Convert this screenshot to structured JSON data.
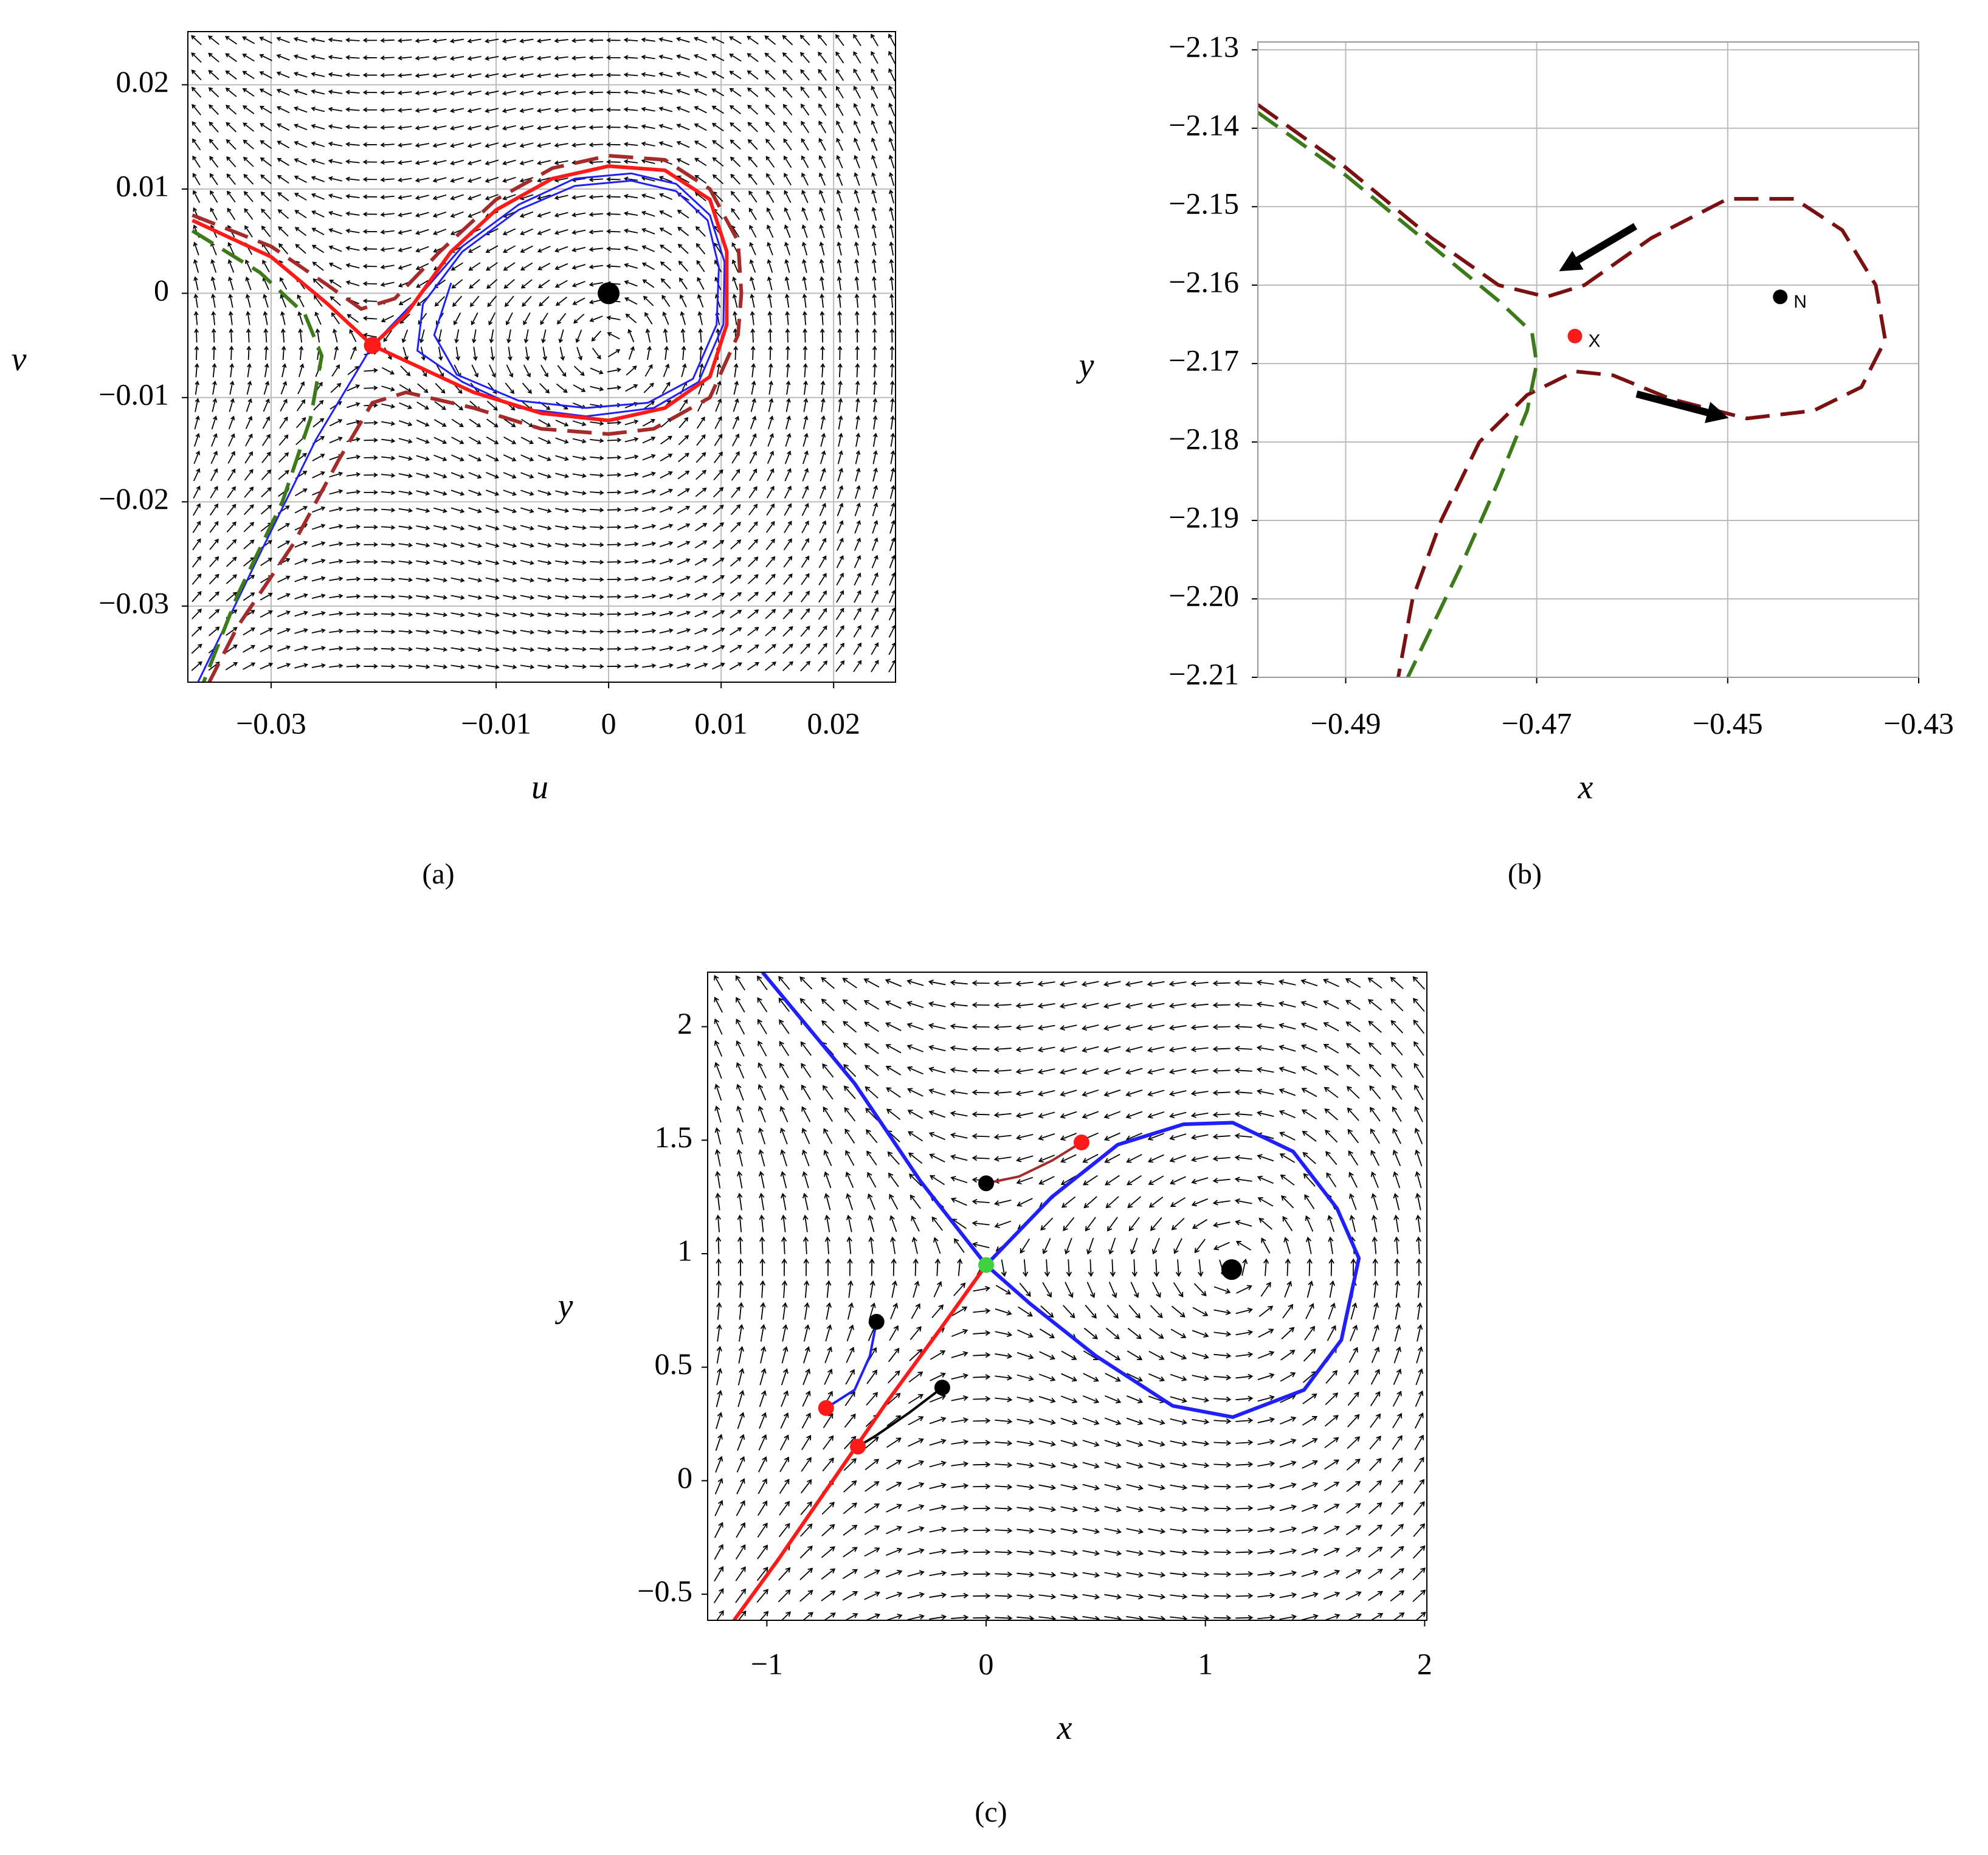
{
  "chart_data": [
    {
      "type": "line",
      "caption": "(a)",
      "xlabel": "u",
      "ylabel": "v",
      "xlim": [
        -0.0374,
        0.0255
      ],
      "ylim": [
        -0.0373,
        0.0251
      ],
      "xticks": [
        {
          "value": -0.03,
          "label": "−0.03"
        },
        {
          "value": -0.01,
          "label": "−0.01"
        },
        0,
        0.01,
        0.02
      ],
      "yticks": [
        0.02,
        0.01,
        0,
        {
          "value": -0.01,
          "label": "−0.01"
        },
        {
          "value": -0.02,
          "label": "−0.02"
        },
        {
          "value": -0.03,
          "label": "−0.03"
        }
      ],
      "grid": true,
      "vector_field": true,
      "series": [
        {
          "color": "#1f1fff",
          "style": "solid",
          "width": 3,
          "x": [
            -0.0365,
            -0.031,
            -0.026,
            -0.021,
            -0.017,
            -0.013,
            -0.008,
            -0.003,
            0.002,
            0.006,
            0.009,
            0.0103,
            0.0102,
            0.008,
            0.004,
            -0.002,
            -0.008,
            -0.013,
            -0.017,
            -0.0165,
            -0.013,
            -0.008,
            -0.003,
            0.002,
            0.006,
            0.0088,
            0.0098,
            0.0096,
            0.0075,
            0.0035,
            -0.002,
            -0.008,
            -0.0135,
            -0.0155,
            -0.014
          ],
          "values": [
            -0.0373,
            -0.025,
            -0.014,
            -0.005,
            -0.0005,
            0.0045,
            0.0085,
            0.011,
            0.0115,
            0.0105,
            0.0075,
            0.003,
            -0.003,
            -0.0085,
            -0.011,
            -0.0118,
            -0.011,
            -0.0085,
            -0.0055,
            -0.001,
            0.004,
            0.008,
            0.0103,
            0.0108,
            0.0098,
            0.007,
            0.0025,
            -0.003,
            -0.0082,
            -0.0105,
            -0.011,
            -0.0103,
            -0.0078,
            -0.004,
            0.001
          ]
        },
        {
          "color": "#ff1a1a",
          "style": "solid",
          "width": 6,
          "x": [
            -0.037,
            -0.03,
            -0.025,
            -0.021,
            -0.018,
            -0.014,
            -0.01,
            -0.005,
            0,
            0.005,
            0.009,
            0.0105,
            0.0105,
            0.009,
            0.005,
            0,
            -0.006,
            -0.012,
            -0.017,
            -0.021
          ],
          "values": [
            0.007,
            0.0035,
            -0.001,
            -0.005,
            -0.002,
            0.004,
            0.008,
            0.011,
            0.0122,
            0.0118,
            0.009,
            0.004,
            -0.003,
            -0.008,
            -0.011,
            -0.0122,
            -0.0115,
            -0.0095,
            -0.007,
            -0.005
          ]
        },
        {
          "color": "#a52a2a",
          "style": "dashed",
          "width": 6,
          "x": [
            -0.037,
            -0.03,
            -0.025,
            -0.022,
            -0.019,
            -0.015,
            -0.01,
            -0.005,
            0,
            0.005,
            0.009,
            0.0115,
            0.0118,
            0.0115,
            0.009,
            0.004,
            0,
            -0.006,
            -0.012,
            -0.018,
            -0.021,
            -0.024,
            -0.028,
            -0.033,
            -0.0355
          ],
          "values": [
            0.0075,
            0.0045,
            0.0008,
            -0.0015,
            -0.0005,
            0.004,
            0.009,
            0.012,
            0.0132,
            0.0128,
            0.01,
            0.005,
            0,
            -0.004,
            -0.01,
            -0.013,
            -0.0135,
            -0.013,
            -0.011,
            -0.0095,
            -0.0105,
            -0.016,
            -0.024,
            -0.032,
            -0.0373
          ]
        },
        {
          "color": "#3d7a1a",
          "style": "dashed",
          "width": 6,
          "x": [
            -0.037,
            -0.031,
            -0.027,
            -0.0255,
            -0.0265,
            -0.029,
            -0.033,
            -0.036
          ],
          "values": [
            0.006,
            0.002,
            -0.002,
            -0.006,
            -0.012,
            -0.02,
            -0.029,
            -0.0373
          ]
        }
      ],
      "points": [
        {
          "x": -0.021,
          "y": -0.005,
          "color": "#ff1a1a"
        },
        {
          "x": 0,
          "y": 0,
          "color": "#000000"
        }
      ]
    },
    {
      "type": "line",
      "caption": "(b)",
      "xlabel": "x",
      "ylabel": "y",
      "xlim": [
        -0.4992,
        -0.43
      ],
      "ylim": [
        -2.21,
        -2.129
      ],
      "xticks": [
        {
          "value": -0.49,
          "label": "−0.49"
        },
        {
          "value": -0.47,
          "label": "−0.47"
        },
        {
          "value": -0.45,
          "label": "−0.45"
        },
        {
          "value": -0.43,
          "label": "−0.43"
        }
      ],
      "yticks": [
        {
          "value": -2.13,
          "label": "−2.13"
        },
        {
          "value": -2.14,
          "label": "−2.14"
        },
        {
          "value": -2.15,
          "label": "−2.15"
        },
        {
          "value": -2.16,
          "label": "−2.16"
        },
        {
          "value": -2.17,
          "label": "−2.17"
        },
        {
          "value": -2.18,
          "label": "−2.18"
        },
        {
          "value": -2.19,
          "label": "−2.19"
        },
        {
          "value": -2.2,
          "label": "−2.20"
        },
        {
          "value": -2.21,
          "label": "−2.21"
        }
      ],
      "grid": true,
      "vector_field": false,
      "series": [
        {
          "color": "#7a1010",
          "style": "dashed",
          "width": 6,
          "x": [
            -0.4992,
            -0.49,
            -0.481,
            -0.474,
            -0.469,
            -0.465,
            -0.458,
            -0.45,
            -0.443,
            -0.438,
            -0.4345,
            -0.4335,
            -0.436,
            -0.441,
            -0.448,
            -0.456,
            -0.462,
            -0.466,
            -0.471,
            -0.476,
            -0.48,
            -0.483,
            -0.4845
          ],
          "values": [
            -2.137,
            -2.145,
            -2.154,
            -2.16,
            -2.1615,
            -2.16,
            -2.154,
            -2.149,
            -2.149,
            -2.153,
            -2.16,
            -2.167,
            -2.173,
            -2.176,
            -2.177,
            -2.1745,
            -2.1715,
            -2.171,
            -2.174,
            -2.18,
            -2.19,
            -2.2,
            -2.21
          ]
        },
        {
          "color": "#3d7a1a",
          "style": "dashed",
          "width": 6,
          "x": [
            -0.4992,
            -0.49,
            -0.481,
            -0.474,
            -0.4705,
            -0.47,
            -0.471,
            -0.474,
            -0.478,
            -0.4835
          ],
          "values": [
            -2.138,
            -2.146,
            -2.155,
            -2.162,
            -2.166,
            -2.17,
            -2.176,
            -2.185,
            -2.196,
            -2.21
          ]
        }
      ],
      "points": [
        {
          "x": -0.466,
          "y": -2.1665,
          "color": "#ff1a1a",
          "label": "X"
        },
        {
          "x": -0.4445,
          "y": -2.1615,
          "color": "#000000",
          "label": "N"
        }
      ]
    },
    {
      "type": "line",
      "caption": "(c)",
      "xlabel": "x",
      "ylabel": "y",
      "xlim": [
        -1.27,
        2.01
      ],
      "ylim": [
        -0.615,
        2.24
      ],
      "xticks": [
        {
          "value": -1,
          "label": "−1"
        },
        0,
        1,
        2
      ],
      "yticks": [
        {
          "value": -0.5,
          "label": "−0.5"
        },
        0,
        0.5,
        1,
        1.5,
        2
      ],
      "grid": false,
      "vector_field": true,
      "series": [
        {
          "color": "#1f1fff",
          "style": "solid",
          "width": 6,
          "x": [
            -1.02,
            -0.6,
            -0.3,
            0,
            0.3,
            0.6,
            0.9,
            1.125,
            1.4,
            1.6,
            1.7,
            1.62,
            1.45,
            1.125,
            0.85,
            0.5,
            0.2,
            0
          ],
          "values": [
            2.24,
            1.75,
            1.32,
            0.95,
            1.25,
            1.48,
            1.57,
            1.577,
            1.45,
            1.2,
            0.98,
            0.62,
            0.4,
            0.28,
            0.33,
            0.55,
            0.78,
            0.95
          ]
        },
        {
          "color": "#ff1a1a",
          "style": "solid",
          "width": 6,
          "x": [
            0,
            -0.2,
            -0.45,
            -0.7,
            -0.95,
            -1.15
          ],
          "values": [
            0.95,
            0.68,
            0.35,
            0.0,
            -0.35,
            -0.615
          ]
        },
        {
          "color": "#a52a2a",
          "style": "solid",
          "width": 4,
          "x": [
            0,
            0.15,
            0.3,
            0.435
          ],
          "values": [
            1.31,
            1.34,
            1.41,
            1.49
          ]
        },
        {
          "color": "#1f1fff",
          "style": "solid",
          "width": 4,
          "x": [
            -0.5,
            -0.53,
            -0.6,
            -0.73
          ],
          "values": [
            0.7,
            0.55,
            0.4,
            0.32
          ]
        },
        {
          "color": "#000000",
          "style": "solid",
          "width": 4,
          "x": [
            -0.2,
            -0.35,
            -0.5,
            -0.585
          ],
          "values": [
            0.41,
            0.3,
            0.2,
            0.15
          ]
        }
      ],
      "points": [
        {
          "x": 0,
          "y": 0.95,
          "color": "#3fd13f"
        },
        {
          "x": 1.12,
          "y": 0.93,
          "color": "#000000"
        },
        {
          "x": 0,
          "y": 1.31,
          "color": "#000000"
        },
        {
          "x": 0.435,
          "y": 1.49,
          "color": "#ff1a1a"
        },
        {
          "x": -0.5,
          "y": 0.7,
          "color": "#000000"
        },
        {
          "x": -0.73,
          "y": 0.32,
          "color": "#ff1a1a"
        },
        {
          "x": -0.2,
          "y": 0.41,
          "color": "#000000"
        },
        {
          "x": -0.585,
          "y": 0.15,
          "color": "#ff1a1a"
        }
      ]
    }
  ]
}
